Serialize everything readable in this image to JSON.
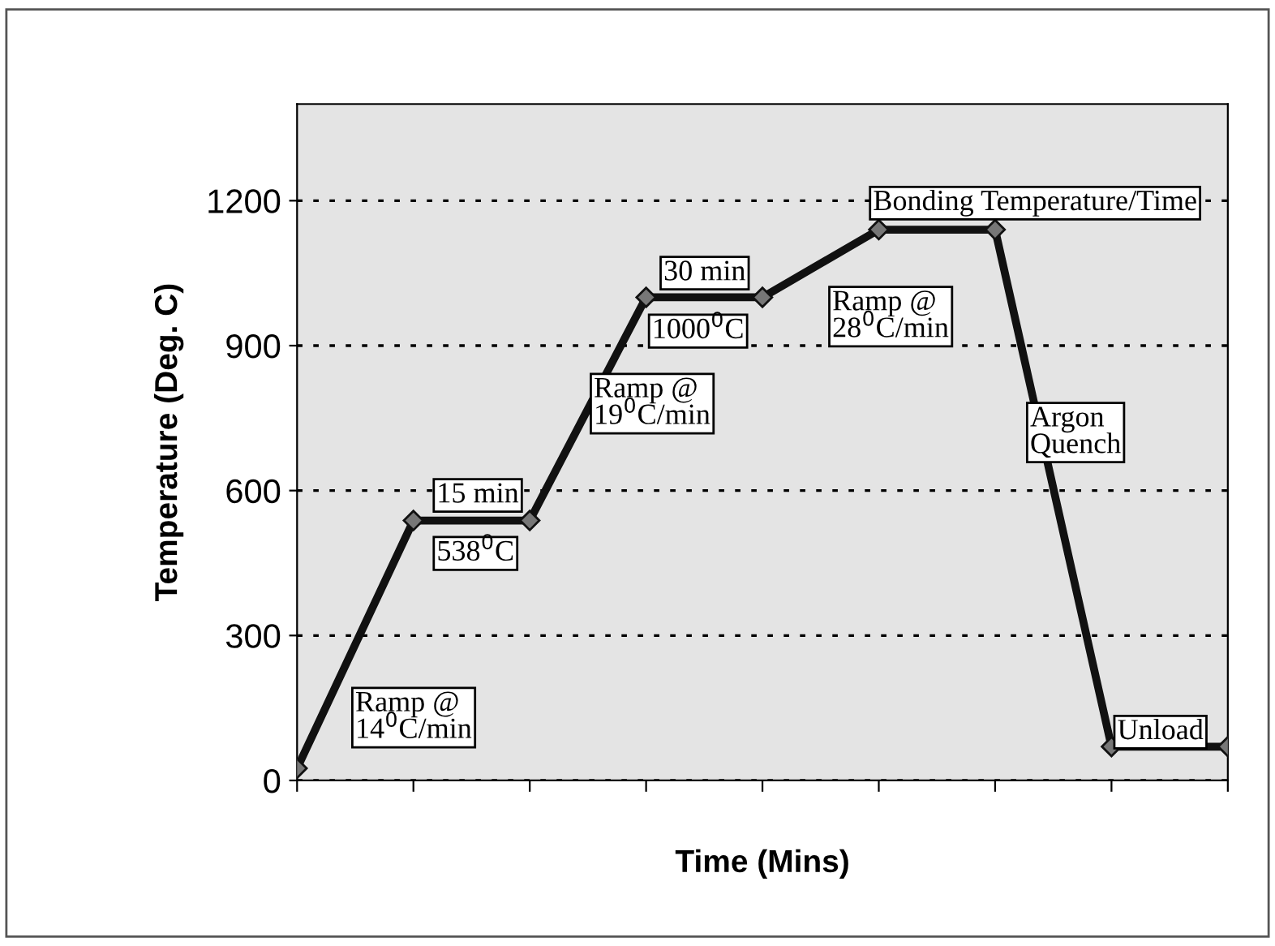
{
  "chart_data": {
    "type": "line",
    "xlabel": "Time (Mins)",
    "ylabel": "Temperature (Deg. C)",
    "categories": [
      null,
      null,
      null,
      null,
      null,
      null,
      null,
      null,
      null
    ],
    "series": [
      {
        "color": "#111111",
        "values": [
          25,
          538,
          538,
          1000,
          1000,
          1140,
          1140,
          70,
          70
        ]
      }
    ],
    "ylim": [
      0,
      1400
    ],
    "yticks": [
      0,
      300,
      600,
      900,
      1200
    ],
    "grid": "y",
    "marker": "diamond",
    "line_style": "solid",
    "annotations": [
      "Ramp @\n14$^{0}$C/min",
      "15 min",
      "538$^{0}$C",
      "Ramp @\n19$^{0}$C/min",
      "30 min",
      "1000$^{0}$C",
      "Bonding Temperature/Time",
      "Ramp @\n28$^{0}$C/min",
      "Argon\nQuench",
      "Unload"
    ]
  }
}
